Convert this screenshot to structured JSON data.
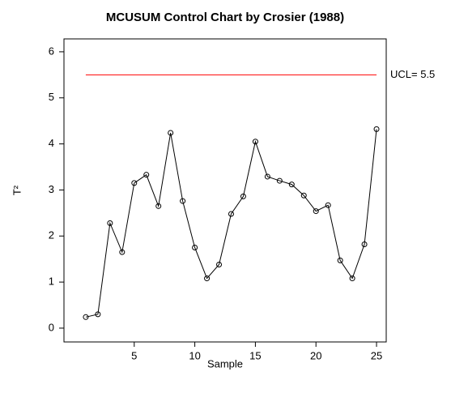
{
  "chart_data": {
    "type": "line",
    "title": "MCUSUM Control Chart by Crosier (1988)",
    "xlabel": "Sample",
    "ylabel": "T²",
    "x": [
      1,
      2,
      3,
      4,
      5,
      6,
      7,
      8,
      9,
      10,
      11,
      12,
      13,
      14,
      15,
      16,
      17,
      18,
      19,
      20,
      21,
      22,
      23,
      24,
      25
    ],
    "series": [
      {
        "color": "#000000",
        "values": [
          0.24,
          0.3,
          2.28,
          1.65,
          3.15,
          3.33,
          2.65,
          4.24,
          2.76,
          1.75,
          1.08,
          1.38,
          2.48,
          2.86,
          4.05,
          3.29,
          3.2,
          3.12,
          2.88,
          2.54,
          2.67,
          1.47,
          1.08,
          1.82,
          4.32
        ]
      }
    ],
    "ucl": {
      "value": 5.5,
      "label": "UCL= 5.5",
      "color": "#ff0000"
    },
    "xlim": [
      -0.8,
      25.8
    ],
    "xticks": [
      5,
      10,
      15,
      20,
      25
    ],
    "ylim": [
      -0.3,
      6.28
    ],
    "yticks": [
      0,
      1,
      2,
      3,
      4,
      5,
      6
    ]
  }
}
